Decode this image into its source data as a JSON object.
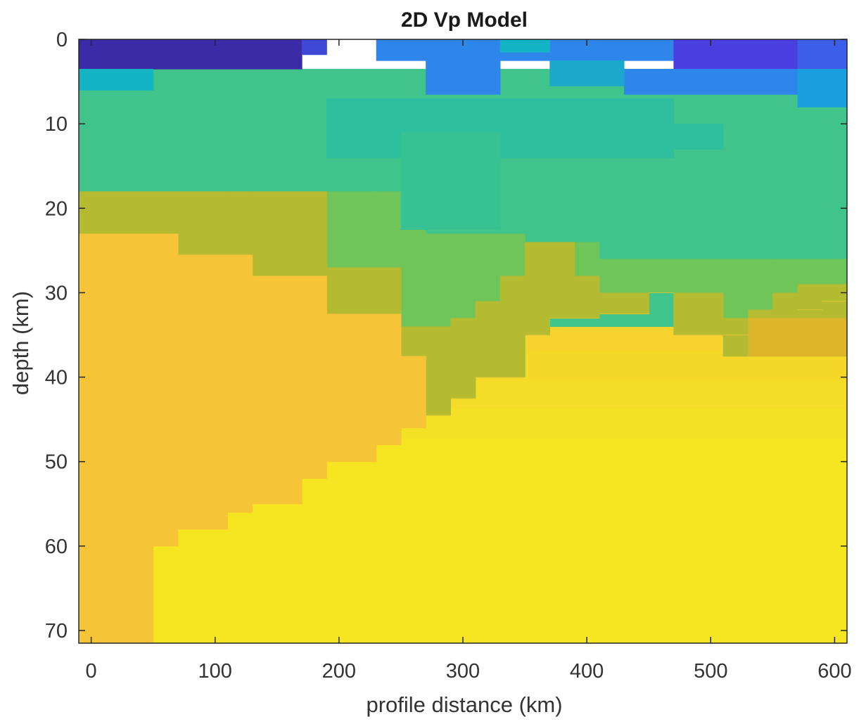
{
  "chart_data": {
    "type": "heatmap",
    "title": "2D Vp Model",
    "xlabel": "profile distance (km)",
    "ylabel": "depth (km)",
    "xlim": [
      -10,
      610
    ],
    "ylim": [
      0,
      71.5
    ],
    "y_reversed": true,
    "grid": false,
    "colormap": "parula",
    "xticks": [
      0,
      100,
      200,
      300,
      400,
      500,
      600
    ],
    "yticks": [
      0,
      10,
      20,
      30,
      40,
      50,
      60,
      70
    ],
    "colors": {
      "deep_blue": "#3c2ba6",
      "blue": "#2f86ea",
      "cyan": "#12b4c6",
      "teal_green": "#40c48c",
      "green": "#6fc55a",
      "olive": "#b4bb31",
      "orange_yellow": "#f6c437",
      "yellow": "#f5e621"
    },
    "regions": {
      "top_layer_depth_km": [
        0,
        3.5
      ],
      "upper_crust_depth_km": [
        3.5,
        18
      ],
      "middle_crust_depth_km": [
        18,
        33
      ],
      "lower_crust_mantle_depth_km": [
        23,
        71.5
      ]
    }
  }
}
